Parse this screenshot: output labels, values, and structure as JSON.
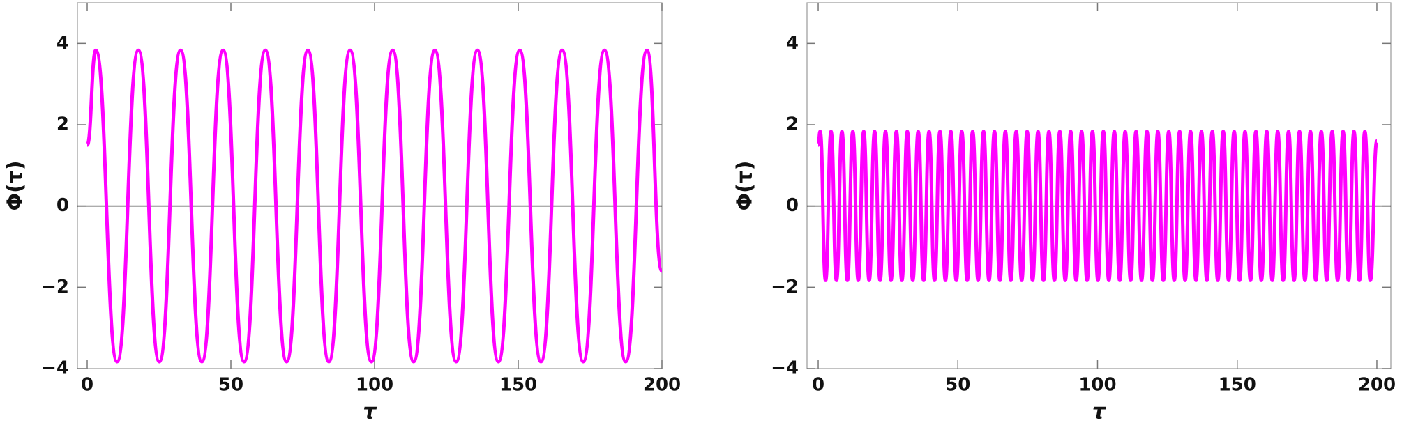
{
  "chart_data": [
    {
      "type": "line",
      "xlabel": "τ",
      "ylabel": "Φ(τ)",
      "color": "#ff00ff",
      "xlim": [
        -3.4,
        200
      ],
      "ylim": [
        -4,
        5
      ],
      "xticks": [
        0,
        50,
        100,
        150,
        200
      ],
      "yticks": [
        {
          "value": -4,
          "label": "−4"
        },
        {
          "value": -2,
          "label": "−2"
        },
        0,
        2,
        4
      ],
      "x": [
        0,
        3,
        10.4,
        17.8,
        25.1,
        32.5,
        39.9,
        47.3,
        54.6,
        62,
        69.4,
        76.8,
        84.1,
        91.5,
        98.9,
        106.3,
        113.6,
        121,
        128.4,
        135.8,
        143.1,
        150.5,
        157.9,
        165.3,
        172.6,
        180,
        187.4,
        194.8,
        200
      ],
      "values": [
        1.5,
        3.83,
        -3.83,
        3.83,
        -3.83,
        3.83,
        -3.83,
        3.83,
        -3.83,
        3.83,
        -3.83,
        3.83,
        -3.83,
        3.83,
        -3.83,
        3.83,
        -3.83,
        3.83,
        -3.83,
        3.83,
        -3.83,
        3.83,
        -3.83,
        3.83,
        -3.83,
        3.83,
        -3.83,
        3.83,
        -1.6
      ]
    },
    {
      "type": "line",
      "xlabel": "τ",
      "ylabel": "Φ(τ)",
      "color": "#ff00ff",
      "xlim": [
        -4,
        205
      ],
      "ylim": [
        -4,
        5
      ],
      "xticks": [
        0,
        50,
        100,
        150,
        200
      ],
      "yticks": [
        {
          "value": -4,
          "label": "−4"
        },
        {
          "value": -2,
          "label": "−2"
        },
        0,
        2,
        4
      ],
      "x": [
        0,
        0.7,
        2.65,
        4.6,
        6.55,
        8.5,
        10.45,
        12.4,
        14.35,
        16.3,
        18.25,
        20.2,
        22.15,
        24.1,
        26.05,
        28,
        29.95,
        31.9,
        33.85,
        35.8,
        37.75,
        39.7,
        41.65,
        43.6,
        45.55,
        47.5,
        49.45,
        51.4,
        53.35,
        55.3,
        57.25,
        59.2,
        61.15,
        63.1,
        65.05,
        67,
        68.95,
        70.9,
        72.85,
        74.8,
        76.75,
        78.7,
        80.65,
        82.6,
        84.55,
        86.5,
        88.45,
        90.4,
        92.35,
        94.3,
        96.25,
        98.2,
        100.15,
        102.1,
        104.05,
        106,
        107.95,
        109.9,
        111.85,
        113.8,
        115.75,
        117.7,
        119.65,
        121.6,
        123.55,
        125.5,
        127.45,
        129.4,
        131.35,
        133.3,
        135.25,
        137.2,
        139.15,
        141.1,
        143.05,
        145,
        146.95,
        148.9,
        150.85,
        152.8,
        154.75,
        156.7,
        158.65,
        160.6,
        162.55,
        164.5,
        166.45,
        168.4,
        170.35,
        172.3,
        174.25,
        176.2,
        178.15,
        180.1,
        182.05,
        184,
        185.95,
        187.9,
        189.85,
        191.8,
        193.75,
        195.7,
        197.65,
        200
      ],
      "values": [
        1.5,
        1.83,
        -1.83,
        1.83,
        -1.83,
        1.83,
        -1.83,
        1.83,
        -1.83,
        1.83,
        -1.83,
        1.83,
        -1.83,
        1.83,
        -1.83,
        1.83,
        -1.83,
        1.83,
        -1.83,
        1.83,
        -1.83,
        1.83,
        -1.83,
        1.83,
        -1.83,
        1.83,
        -1.83,
        1.83,
        -1.83,
        1.83,
        -1.83,
        1.83,
        -1.83,
        1.83,
        -1.83,
        1.83,
        -1.83,
        1.83,
        -1.83,
        1.83,
        -1.83,
        1.83,
        -1.83,
        1.83,
        -1.83,
        1.83,
        -1.83,
        1.83,
        -1.83,
        1.83,
        -1.83,
        1.83,
        -1.83,
        1.83,
        -1.83,
        1.83,
        -1.83,
        1.83,
        -1.83,
        1.83,
        -1.83,
        1.83,
        -1.83,
        1.83,
        -1.83,
        1.83,
        -1.83,
        1.83,
        -1.83,
        1.83,
        -1.83,
        1.83,
        -1.83,
        1.83,
        -1.83,
        1.83,
        -1.83,
        1.83,
        -1.83,
        1.83,
        -1.83,
        1.83,
        -1.83,
        1.83,
        -1.83,
        1.83,
        -1.83,
        1.83,
        -1.83,
        1.83,
        -1.83,
        1.83,
        -1.83,
        1.83,
        -1.83,
        1.83,
        -1.83,
        1.83,
        -1.83,
        1.83,
        -1.83,
        1.83,
        -1.83,
        1.6
      ]
    }
  ]
}
